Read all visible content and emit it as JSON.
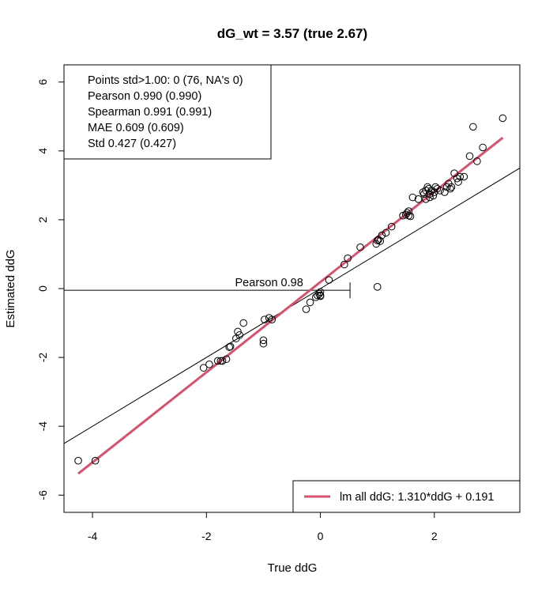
{
  "chart_data": {
    "type": "scatter",
    "title": "dG_wt = 3.57 (true 2.67)",
    "xlabel": "True ddG",
    "ylabel": "Estimated ddG",
    "xlim": [
      -4.5,
      3.5
    ],
    "ylim": [
      -6.5,
      6.5
    ],
    "xticks": [
      -4,
      -2,
      0,
      2
    ],
    "xtick_labels": [
      "-4",
      "-2",
      "0",
      "2"
    ],
    "yticks": [
      -6,
      -4,
      -2,
      0,
      2,
      4,
      6
    ],
    "ytick_labels": [
      "-6",
      "-4",
      "-2",
      "0",
      "2",
      "4",
      "6"
    ],
    "grid": false,
    "stats_box": {
      "position": "top-left",
      "lines": [
        "Points std>1.00: 0 (76, NA's 0)",
        "Pearson 0.990 (0.990)",
        "Spearman 0.991 (0.991)",
        "MAE 0.609 (0.609)",
        "Std 0.427 (0.427)"
      ]
    },
    "legend": {
      "position": "bottom-right",
      "label": "lm all ddG: 1.310*ddG + 0.191",
      "color": "#d6526e"
    },
    "fit_line": {
      "slope": 1.31,
      "intercept": 0.191,
      "x_range": [
        -4.25,
        3.2
      ],
      "color": "#d6526e"
    },
    "reference_line": {
      "slope": 1.0,
      "intercept": 0.0,
      "color": "#000000"
    },
    "pearson_segment": {
      "label": "Pearson 0.98",
      "y": -0.05,
      "x_from": -4.5,
      "x_to": 0.52
    },
    "points": {
      "x": [
        -4.25,
        -3.95,
        -2.05,
        -1.95,
        -1.8,
        -1.75,
        -1.65,
        -1.6,
        -1.58,
        -1.48,
        -1.45,
        -1.42,
        -1.35,
        -1.0,
        -1.0,
        -0.98,
        -0.9,
        -0.85,
        -0.25,
        -0.18,
        -0.08,
        -0.02,
        0.0,
        0.0,
        0.15,
        0.42,
        0.48,
        0.7,
        0.98,
        1.0,
        1.02,
        1.05,
        1.08,
        1.15,
        1.25,
        1.45,
        1.5,
        1.52,
        1.55,
        1.58,
        1.62,
        1.72,
        1.8,
        1.82,
        1.85,
        1.88,
        1.9,
        1.95,
        1.98,
        2.05,
        2.1,
        2.18,
        2.22,
        2.28,
        2.35,
        2.4,
        2.45,
        2.52,
        2.62,
        2.68,
        2.75,
        2.85,
        3.2,
        1.0,
        1.85,
        1.92,
        2.25,
        2.42,
        0.0,
        -1.72,
        1.92,
        2.02,
        1.55,
        -0.05,
        2.0,
        2.3
      ],
      "y": [
        -5.0,
        -5.0,
        -2.3,
        -2.2,
        -2.1,
        -2.1,
        -2.05,
        -1.7,
        -1.68,
        -1.45,
        -1.25,
        -1.35,
        -1.0,
        -1.5,
        -1.6,
        -0.9,
        -0.85,
        -0.9,
        -0.6,
        -0.4,
        -0.25,
        -0.15,
        -0.2,
        -0.1,
        0.25,
        0.7,
        0.88,
        1.2,
        1.3,
        1.4,
        1.42,
        1.38,
        1.55,
        1.62,
        1.8,
        2.12,
        2.15,
        2.2,
        2.12,
        2.1,
        2.65,
        2.6,
        2.8,
        2.75,
        2.85,
        2.95,
        2.9,
        2.85,
        2.7,
        2.9,
        2.85,
        2.8,
        2.95,
        2.9,
        3.35,
        3.2,
        3.25,
        3.25,
        3.85,
        4.7,
        3.7,
        4.1,
        4.95,
        0.05,
        2.6,
        2.75,
        3.05,
        3.1,
        -0.22,
        -2.1,
        2.65,
        2.95,
        2.25,
        -0.2,
        2.8,
        2.95
      ]
    }
  }
}
